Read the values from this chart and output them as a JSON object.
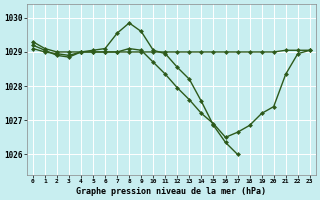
{
  "bg_color": "#c8eef0",
  "grid_color": "#ffffff",
  "line_color": "#2d5a1b",
  "title": "Graphe pression niveau de la mer (hPa)",
  "ylim": [
    1025.4,
    1030.4
  ],
  "yticks": [
    1026,
    1027,
    1028,
    1029,
    1030
  ],
  "line1_x": [
    0,
    1,
    2,
    3,
    4,
    5,
    6,
    7,
    8,
    9,
    10,
    11,
    12,
    13,
    14,
    15,
    16,
    17,
    18,
    19,
    20,
    21,
    22,
    23
  ],
  "line1_y": [
    1029.3,
    1029.1,
    1029.0,
    1029.0,
    1029.0,
    1029.0,
    1029.0,
    1029.0,
    1029.0,
    1029.0,
    1029.0,
    1029.0,
    1029.0,
    1029.0,
    1029.0,
    1029.0,
    1029.0,
    1029.0,
    1029.0,
    1029.0,
    1029.0,
    1029.05,
    1029.05,
    1029.05
  ],
  "line2_x": [
    0,
    1,
    2,
    3,
    4,
    5,
    6,
    7,
    8,
    9,
    10,
    11,
    12,
    13,
    14,
    15,
    16,
    17,
    18,
    19,
    20,
    21,
    22,
    23
  ],
  "line2_y": [
    1029.1,
    1029.0,
    1028.95,
    1028.9,
    1029.0,
    1029.05,
    1029.1,
    1029.55,
    1029.85,
    1029.6,
    1029.05,
    1028.95,
    1028.55,
    1028.2,
    1027.55,
    1026.85,
    1026.35,
    1026.0,
    null,
    null,
    null,
    null,
    null,
    null
  ],
  "line3_x": [
    0,
    1,
    2,
    3,
    4,
    5,
    6,
    7,
    8,
    9,
    10,
    11,
    12,
    13,
    14,
    15,
    16,
    17,
    18,
    19,
    20,
    21,
    22,
    23
  ],
  "line3_y": [
    1029.2,
    1029.05,
    1028.9,
    1028.85,
    1029.0,
    1029.0,
    1029.0,
    1029.0,
    1029.1,
    1029.05,
    1028.7,
    1028.35,
    1027.95,
    1027.6,
    1027.2,
    1026.9,
    1026.5,
    1026.65,
    1026.85,
    1027.2,
    1027.4,
    1028.35,
    1028.95,
    1029.05
  ],
  "markersize": 2.5,
  "linewidth": 1.0
}
